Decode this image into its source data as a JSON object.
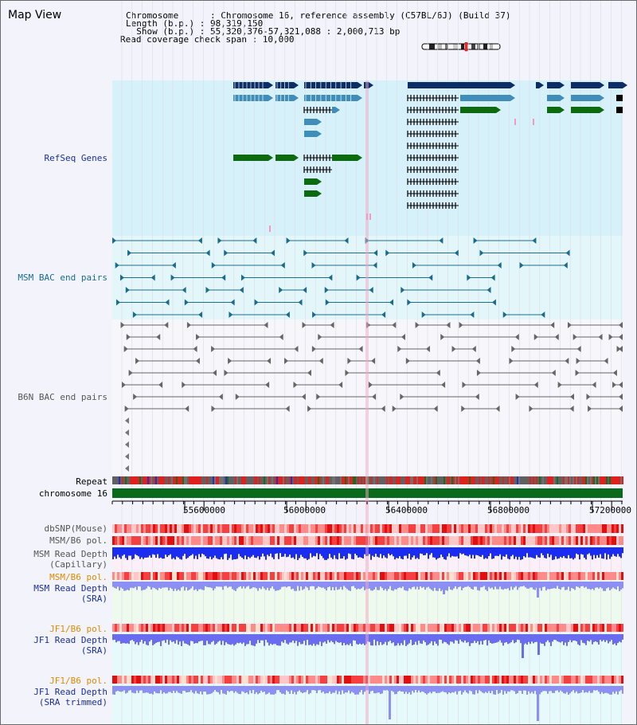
{
  "view": {
    "title": "Map View"
  },
  "info": {
    "chromosome": "Chromosome      : Chromosome 16, reference assembly (C57BL/6J) (Build 37)",
    "length": "Length (b.p.) : 98,319,150",
    "show": "  Show (b.p.) : 55,320,376-57,321,088 : 2,000,713 bp",
    "read_coverage": "Read coverage check span : 10,000"
  },
  "tracks": {
    "refseq": "RefSeq Genes",
    "msm_bac": "MSM BAC end pairs",
    "b6n_bac": "B6N BAC end pairs",
    "repeat": "Repeat",
    "chromosome": "chromosome 16",
    "dbsnp": "dbSNP(Mouse)",
    "msm_b6_pol": "MSM/B6 pol.",
    "msm_read_depth_cap_1": "MSM Read Depth",
    "msm_read_depth_cap_2": "(Capillary)",
    "msm_b6_pol_2": "MSM/B6 pol.",
    "msm_read_depth_sra_1": "MSM Read Depth",
    "msm_read_depth_sra_2": "(SRA)",
    "jf1_b6_pol": "JF1/B6 pol.",
    "jf1_read_depth_sra_1": "JF1 Read Depth",
    "jf1_read_depth_sra_2": "(SRA)",
    "jf1_b6_pol_2": "JF1/B6 pol.",
    "jf1_read_depth_trim_1": "JF1 Read Depth",
    "jf1_read_depth_trim_2": "(SRA trimmed)"
  },
  "axis": {
    "ticks": [
      "55600000",
      "56000000",
      "56400000",
      "56800000",
      "57200000"
    ],
    "range": [
      55320376,
      57321088
    ]
  },
  "colors": {
    "refseq_bg": "#d7f1fb",
    "msm_bg": "#e3f7fb",
    "b6n_bg": "#f7f7fb",
    "dark_gene": "#0d2d66",
    "mid_gene": "#3f8db8",
    "green_gene": "#0c6b10",
    "msm_line": "#1a6c8c",
    "b6n_line": "#666666",
    "label_blue": "#1a2f9b",
    "label_teal": "#2a6f8b",
    "label_orange": "#e08a00",
    "chrom_green": "#0a6a1c"
  }
}
